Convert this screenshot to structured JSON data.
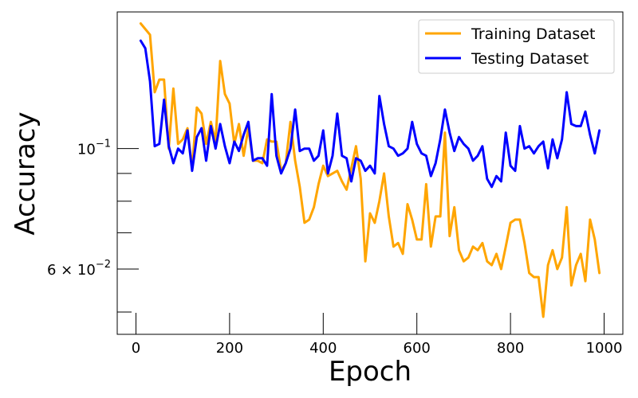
{
  "chart_data": {
    "type": "line",
    "title": "",
    "xlabel": "Epoch",
    "ylabel": "Accuracy",
    "yscale": "log",
    "xlim": [
      -40,
      1040
    ],
    "ylim": [
      0.0455,
      0.1785
    ],
    "x_ticks": [
      {
        "value": 0,
        "label": "0"
      },
      {
        "value": 200,
        "label": "200"
      },
      {
        "value": 400,
        "label": "400"
      },
      {
        "value": 600,
        "label": "600"
      },
      {
        "value": 800,
        "label": "800"
      },
      {
        "value": 1000,
        "label": "1000"
      }
    ],
    "y_major_ticks": [
      {
        "value": 0.1,
        "base": "10",
        "exp": "−1",
        "mantissa": ""
      },
      {
        "value": 0.06,
        "base": "10",
        "exp": "−2",
        "mantissa": "6 × "
      }
    ],
    "y_minor_ticks": [
      0.05,
      0.07,
      0.08,
      0.09
    ],
    "legend_position": "top-right",
    "grid": false,
    "x": [
      10,
      20,
      30,
      40,
      50,
      60,
      70,
      80,
      90,
      100,
      110,
      120,
      130,
      140,
      150,
      160,
      170,
      180,
      190,
      200,
      210,
      220,
      230,
      240,
      250,
      260,
      270,
      280,
      290,
      300,
      310,
      320,
      330,
      340,
      350,
      360,
      370,
      380,
      390,
      400,
      410,
      420,
      430,
      440,
      450,
      460,
      470,
      480,
      490,
      500,
      510,
      520,
      530,
      540,
      550,
      560,
      570,
      580,
      590,
      600,
      610,
      620,
      630,
      640,
      650,
      660,
      670,
      680,
      690,
      700,
      710,
      720,
      730,
      740,
      750,
      760,
      770,
      780,
      790,
      800,
      810,
      820,
      830,
      840,
      850,
      860,
      870,
      880,
      890,
      900,
      910,
      920,
      930,
      940,
      950,
      960,
      970,
      980,
      990
    ],
    "series": [
      {
        "name": "Training Dataset",
        "color": "#FFA500",
        "values": [
          0.17,
          0.166,
          0.162,
          0.127,
          0.134,
          0.134,
          0.1,
          0.129,
          0.102,
          0.104,
          0.109,
          0.092,
          0.119,
          0.116,
          0.102,
          0.112,
          0.103,
          0.145,
          0.126,
          0.121,
          0.102,
          0.111,
          0.097,
          0.109,
          0.095,
          0.095,
          0.094,
          0.104,
          0.103,
          0.103,
          0.091,
          0.094,
          0.112,
          0.095,
          0.085,
          0.073,
          0.074,
          0.078,
          0.086,
          0.093,
          0.089,
          0.09,
          0.091,
          0.087,
          0.084,
          0.092,
          0.101,
          0.088,
          0.062,
          0.076,
          0.073,
          0.08,
          0.09,
          0.075,
          0.066,
          0.067,
          0.064,
          0.079,
          0.074,
          0.068,
          0.068,
          0.086,
          0.066,
          0.075,
          0.075,
          0.107,
          0.069,
          0.078,
          0.065,
          0.062,
          0.063,
          0.066,
          0.065,
          0.067,
          0.062,
          0.061,
          0.064,
          0.06,
          0.066,
          0.073,
          0.074,
          0.074,
          0.067,
          0.059,
          0.058,
          0.058,
          0.049,
          0.061,
          0.065,
          0.06,
          0.063,
          0.078,
          0.056,
          0.061,
          0.064,
          0.057,
          0.074,
          0.068,
          0.059
        ]
      },
      {
        "name": "Testing Dataset",
        "color": "#0000FF",
        "values": [
          0.158,
          0.153,
          0.133,
          0.101,
          0.102,
          0.123,
          0.101,
          0.094,
          0.1,
          0.098,
          0.108,
          0.091,
          0.105,
          0.109,
          0.095,
          0.11,
          0.1,
          0.111,
          0.101,
          0.094,
          0.103,
          0.099,
          0.106,
          0.112,
          0.095,
          0.096,
          0.096,
          0.093,
          0.126,
          0.097,
          0.09,
          0.094,
          0.1,
          0.118,
          0.099,
          0.1,
          0.1,
          0.095,
          0.097,
          0.108,
          0.09,
          0.097,
          0.116,
          0.097,
          0.096,
          0.087,
          0.096,
          0.095,
          0.091,
          0.093,
          0.09,
          0.125,
          0.111,
          0.101,
          0.1,
          0.097,
          0.098,
          0.1,
          0.112,
          0.102,
          0.098,
          0.097,
          0.089,
          0.094,
          0.104,
          0.118,
          0.107,
          0.099,
          0.105,
          0.102,
          0.1,
          0.095,
          0.097,
          0.101,
          0.088,
          0.085,
          0.089,
          0.087,
          0.107,
          0.093,
          0.091,
          0.11,
          0.1,
          0.101,
          0.098,
          0.101,
          0.103,
          0.092,
          0.104,
          0.096,
          0.104,
          0.127,
          0.111,
          0.11,
          0.11,
          0.117,
          0.106,
          0.098,
          0.108
        ]
      }
    ]
  }
}
